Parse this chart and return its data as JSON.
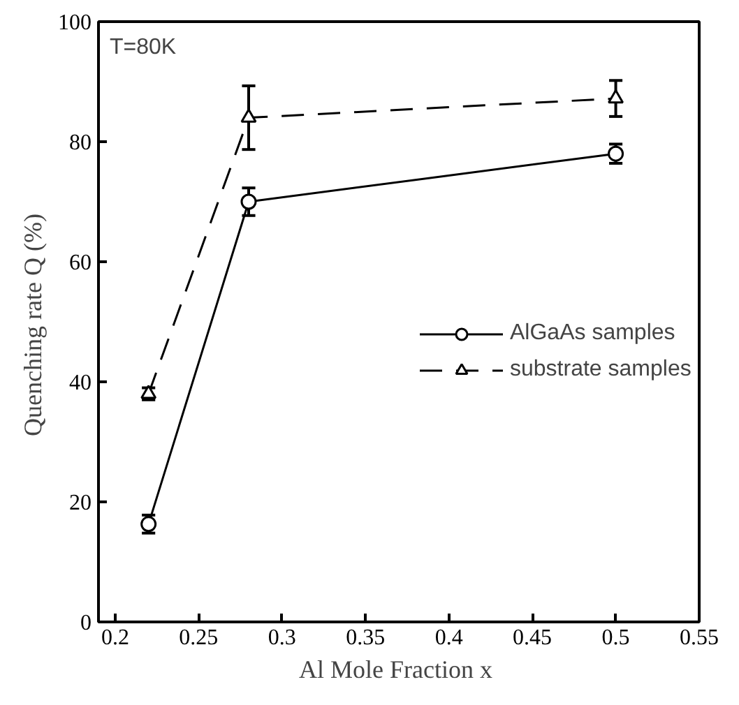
{
  "chart_data": {
    "type": "line",
    "xlabel": "Al Mole Fraction  x",
    "ylabel": "Quenching rate  Q (%)",
    "annotations": [
      "T=80K"
    ],
    "xlim": [
      0.19,
      0.55
    ],
    "xticks": [
      0.2,
      0.25,
      0.3,
      0.35,
      0.4,
      0.45,
      0.5,
      0.55
    ],
    "ylim": [
      0,
      100
    ],
    "yticks": [
      0,
      20,
      40,
      60,
      80,
      100
    ],
    "grid": false,
    "legend": "right",
    "series": [
      {
        "name": "AlGaAs samples",
        "color": "#000000",
        "x": [
          0.22,
          0.28,
          0.5
        ],
        "values": [
          16.3,
          70,
          78
        ],
        "errors": [
          1.5,
          2.3,
          1.6
        ],
        "marker": "circle",
        "line_style": "solid"
      },
      {
        "name": "substrate samples",
        "color": "#000000",
        "x": [
          0.22,
          0.28,
          0.5
        ],
        "values": [
          38,
          84,
          87.2
        ],
        "errors": [
          1,
          5.3,
          3
        ],
        "marker": "triangle",
        "line_style": "dashed"
      }
    ]
  }
}
